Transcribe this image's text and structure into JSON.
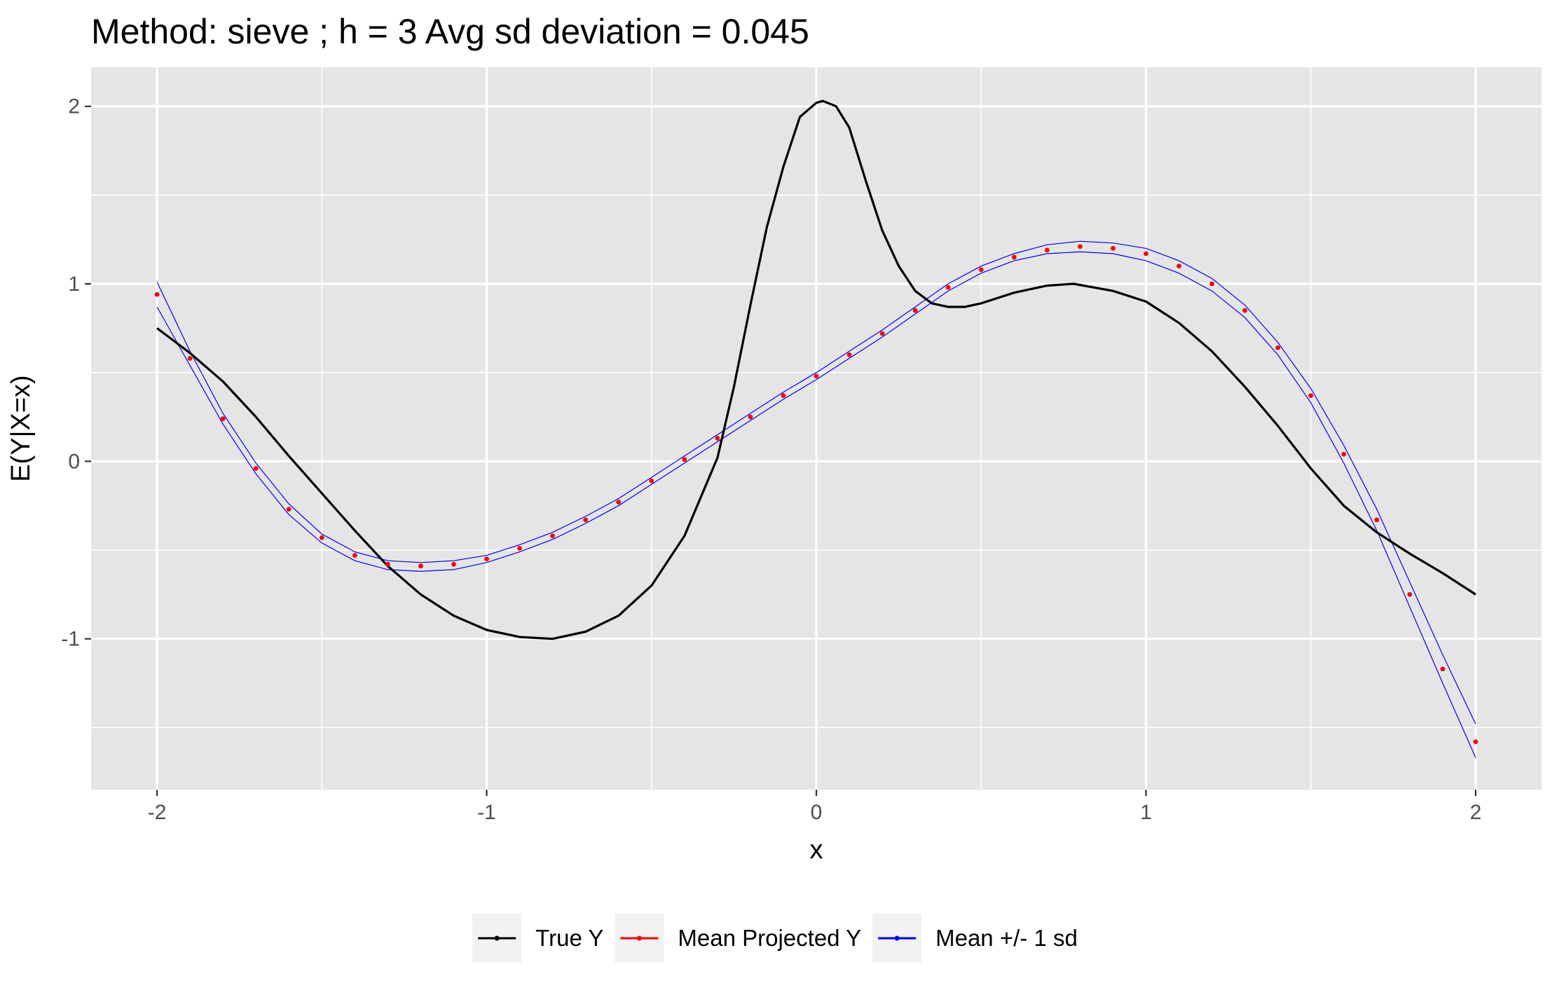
{
  "chart_data": {
    "type": "line",
    "title": "Method: sieve ; h = 3 Avg sd deviation = 0.045",
    "xlabel": "x",
    "ylabel": "E(Y|X=x)",
    "xlim": [
      -2.2,
      2.2
    ],
    "ylim": [
      -1.85,
      2.22
    ],
    "x_ticks": [
      -2,
      -1,
      0,
      1,
      2
    ],
    "x_tick_labels": [
      "-2",
      "-1",
      "0",
      "1",
      "2"
    ],
    "y_ticks": [
      -1,
      0,
      1,
      2
    ],
    "y_tick_labels": [
      "-1",
      "0",
      "1",
      "2"
    ],
    "grid": true,
    "legend_position": "bottom",
    "series": [
      {
        "name": "True Y",
        "color": "#000000",
        "style": "line",
        "x": [
          -2.0,
          -1.9,
          -1.8,
          -1.7,
          -1.6,
          -1.5,
          -1.4,
          -1.3,
          -1.2,
          -1.1,
          -1.0,
          -0.9,
          -0.8,
          -0.7,
          -0.6,
          -0.5,
          -0.4,
          -0.3,
          -0.25,
          -0.2,
          -0.15,
          -0.1,
          -0.05,
          0.0,
          0.02,
          0.06,
          0.1,
          0.15,
          0.2,
          0.25,
          0.3,
          0.35,
          0.4,
          0.45,
          0.5,
          0.6,
          0.7,
          0.78,
          0.9,
          1.0,
          1.1,
          1.2,
          1.3,
          1.4,
          1.5,
          1.6,
          1.7,
          1.8,
          1.9,
          2.0
        ],
        "y": [
          0.75,
          0.61,
          0.45,
          0.25,
          0.03,
          -0.18,
          -0.39,
          -0.59,
          -0.75,
          -0.87,
          -0.95,
          -0.99,
          -1.0,
          -0.96,
          -0.87,
          -0.7,
          -0.42,
          0.02,
          0.42,
          0.88,
          1.32,
          1.66,
          1.94,
          2.02,
          2.03,
          2.0,
          1.88,
          1.58,
          1.3,
          1.1,
          0.96,
          0.89,
          0.87,
          0.87,
          0.89,
          0.95,
          0.99,
          1.0,
          0.96,
          0.9,
          0.78,
          0.62,
          0.42,
          0.2,
          -0.04,
          -0.25,
          -0.4,
          -0.52,
          -0.63,
          -0.75
        ]
      },
      {
        "name": "Mean Projected Y",
        "color": "#ff0000",
        "style": "points",
        "x": [
          -2.0,
          -1.9,
          -1.8,
          -1.7,
          -1.6,
          -1.5,
          -1.4,
          -1.3,
          -1.2,
          -1.1,
          -1.0,
          -0.9,
          -0.8,
          -0.7,
          -0.6,
          -0.5,
          -0.4,
          -0.3,
          -0.2,
          -0.1,
          0.0,
          0.1,
          0.2,
          0.3,
          0.4,
          0.5,
          0.6,
          0.7,
          0.8,
          0.9,
          1.0,
          1.1,
          1.2,
          1.3,
          1.4,
          1.5,
          1.6,
          1.7,
          1.8,
          1.9,
          2.0
        ],
        "y": [
          0.94,
          0.58,
          0.24,
          -0.04,
          -0.27,
          -0.43,
          -0.53,
          -0.58,
          -0.59,
          -0.58,
          -0.55,
          -0.49,
          -0.42,
          -0.33,
          -0.23,
          -0.11,
          0.01,
          0.13,
          0.25,
          0.37,
          0.48,
          0.6,
          0.72,
          0.85,
          0.98,
          1.08,
          1.15,
          1.19,
          1.21,
          1.2,
          1.17,
          1.1,
          1.0,
          0.85,
          0.64,
          0.37,
          0.04,
          -0.33,
          -0.75,
          -1.17,
          -1.58
        ]
      },
      {
        "name": "Mean +/- 1 sd",
        "color": "#0000ff",
        "style": "thin-line",
        "x": [
          -2.0,
          -1.9,
          -1.8,
          -1.7,
          -1.6,
          -1.5,
          -1.4,
          -1.3,
          -1.2,
          -1.1,
          -1.0,
          -0.9,
          -0.8,
          -0.7,
          -0.6,
          -0.5,
          -0.4,
          -0.3,
          -0.2,
          -0.1,
          0.0,
          0.1,
          0.2,
          0.3,
          0.4,
          0.5,
          0.6,
          0.7,
          0.8,
          0.9,
          1.0,
          1.1,
          1.2,
          1.3,
          1.4,
          1.5,
          1.6,
          1.7,
          1.8,
          1.9,
          2.0
        ],
        "upper": [
          1.01,
          0.62,
          0.27,
          -0.01,
          -0.24,
          -0.41,
          -0.51,
          -0.56,
          -0.57,
          -0.56,
          -0.53,
          -0.47,
          -0.4,
          -0.31,
          -0.21,
          -0.09,
          0.03,
          0.15,
          0.27,
          0.39,
          0.5,
          0.62,
          0.74,
          0.87,
          1.0,
          1.1,
          1.17,
          1.22,
          1.24,
          1.23,
          1.2,
          1.13,
          1.03,
          0.88,
          0.67,
          0.41,
          0.09,
          -0.27,
          -0.68,
          -1.09,
          -1.48
        ],
        "lower": [
          0.87,
          0.54,
          0.21,
          -0.07,
          -0.3,
          -0.46,
          -0.56,
          -0.61,
          -0.62,
          -0.61,
          -0.57,
          -0.51,
          -0.44,
          -0.35,
          -0.25,
          -0.13,
          -0.01,
          0.11,
          0.23,
          0.35,
          0.46,
          0.58,
          0.7,
          0.83,
          0.96,
          1.06,
          1.13,
          1.17,
          1.18,
          1.17,
          1.13,
          1.06,
          0.96,
          0.81,
          0.6,
          0.33,
          -0.01,
          -0.39,
          -0.82,
          -1.25,
          -1.67
        ]
      }
    ]
  }
}
